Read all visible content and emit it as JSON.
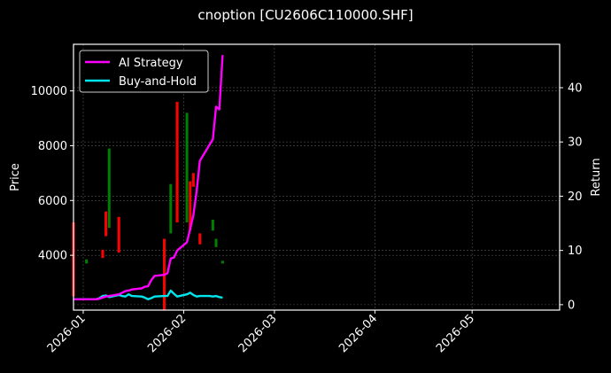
{
  "title": "cnoption [CU2606C110000.SHF]",
  "colors": {
    "background": "#000000",
    "ai_strategy": "#ff00ff",
    "buy_and_hold": "#00e5ee",
    "candle_up": "#008000",
    "candle_down": "#ff0000",
    "grid": "#555555",
    "axis": "#ffffff"
  },
  "legend": {
    "items": [
      {
        "label": "AI Strategy",
        "color": "#ff00ff"
      },
      {
        "label": "Buy-and-Hold",
        "color": "#00e5ee"
      }
    ]
  },
  "axes": {
    "left_label": "Price",
    "right_label": "Return",
    "left_ticks": [
      "4000",
      "6000",
      "8000",
      "10000"
    ],
    "right_ticks": [
      "0",
      "10",
      "20",
      "30",
      "40"
    ],
    "x_ticks": [
      "2026-01",
      "2026-02",
      "2026-03",
      "2026-04",
      "2026-05"
    ]
  },
  "chart_data": {
    "type": "line",
    "title": "cnoption [CU2606C110000.SHF]",
    "xlabel": "",
    "ylabel": "Price",
    "y2label": "Return",
    "ylim": [
      2000,
      11700
    ],
    "y2lim": [
      -1,
      48
    ],
    "xlim": [
      "2025-12-29",
      "2026-05-28"
    ],
    "grid": true,
    "legend_position": "upper left",
    "x_tick_labels": [
      "2026-01",
      "2026-02",
      "2026-03",
      "2026-04",
      "2026-05"
    ],
    "x": [
      "2025-12-29",
      "2026-01-02",
      "2026-01-05",
      "2026-01-06",
      "2026-01-07",
      "2026-01-08",
      "2026-01-09",
      "2026-01-12",
      "2026-01-13",
      "2026-01-14",
      "2026-01-15",
      "2026-01-16",
      "2026-01-19",
      "2026-01-20",
      "2026-01-21",
      "2026-01-22",
      "2026-01-23",
      "2026-01-26",
      "2026-01-27",
      "2026-01-28",
      "2026-01-29",
      "2026-01-30",
      "2026-02-02",
      "2026-02-03",
      "2026-02-04",
      "2026-02-05",
      "2026-02-06",
      "2026-02-09",
      "2026-02-10",
      "2026-02-11",
      "2026-02-12",
      "2026-02-13"
    ],
    "series": [
      {
        "name": "AI Strategy",
        "axis": "right",
        "values": [
          1.0,
          1.0,
          1.0,
          1.1,
          1.3,
          1.5,
          1.6,
          1.9,
          2.2,
          2.5,
          2.6,
          2.8,
          3.0,
          3.3,
          3.4,
          4.5,
          5.3,
          5.5,
          5.8,
          8.5,
          8.7,
          10.0,
          11.5,
          14.0,
          16.5,
          21.0,
          26.5,
          29.5,
          30.5,
          36.5,
          36.0,
          46.0
        ]
      },
      {
        "name": "Buy-and-Hold",
        "axis": "right",
        "values": [
          1.0,
          1.0,
          1.0,
          1.2,
          1.6,
          1.7,
          1.4,
          1.8,
          1.6,
          1.5,
          1.9,
          1.6,
          1.5,
          1.3,
          1.0,
          1.2,
          1.5,
          1.6,
          1.6,
          2.6,
          2.0,
          1.5,
          1.9,
          2.2,
          1.8,
          1.5,
          1.6,
          1.6,
          1.5,
          1.6,
          1.4,
          1.3
        ]
      },
      {
        "name": "Candles",
        "axis": "left",
        "type": "candlestick",
        "values": [
          {
            "date": "2025-12-29",
            "open": 5200,
            "close": 2500,
            "dir": "down"
          },
          {
            "date": "2026-01-02",
            "open": 3700,
            "close": 3850,
            "dir": "up"
          },
          {
            "date": "2026-01-07",
            "open": 4200,
            "close": 3900,
            "dir": "down"
          },
          {
            "date": "2026-01-08",
            "open": 5600,
            "close": 4700,
            "dir": "down"
          },
          {
            "date": "2026-01-09",
            "open": 5000,
            "close": 7900,
            "dir": "up"
          },
          {
            "date": "2026-01-12",
            "open": 5400,
            "close": 4100,
            "dir": "down"
          },
          {
            "date": "2026-01-26",
            "open": 4600,
            "close": 2000,
            "dir": "down"
          },
          {
            "date": "2026-01-28",
            "open": 4800,
            "close": 6600,
            "dir": "up"
          },
          {
            "date": "2026-01-30",
            "open": 9600,
            "close": 5200,
            "dir": "down"
          },
          {
            "date": "2026-02-02",
            "open": 5200,
            "close": 9200,
            "dir": "up"
          },
          {
            "date": "2026-02-03",
            "open": 6700,
            "close": 4900,
            "dir": "down"
          },
          {
            "date": "2026-02-04",
            "open": 7000,
            "close": 6500,
            "dir": "down"
          },
          {
            "date": "2026-02-06",
            "open": 4800,
            "close": 4400,
            "dir": "down"
          },
          {
            "date": "2026-02-10",
            "open": 4900,
            "close": 5300,
            "dir": "up"
          },
          {
            "date": "2026-02-11",
            "open": 4300,
            "close": 4600,
            "dir": "up"
          },
          {
            "date": "2026-02-13",
            "open": 3700,
            "close": 3800,
            "dir": "up"
          }
        ]
      }
    ]
  }
}
